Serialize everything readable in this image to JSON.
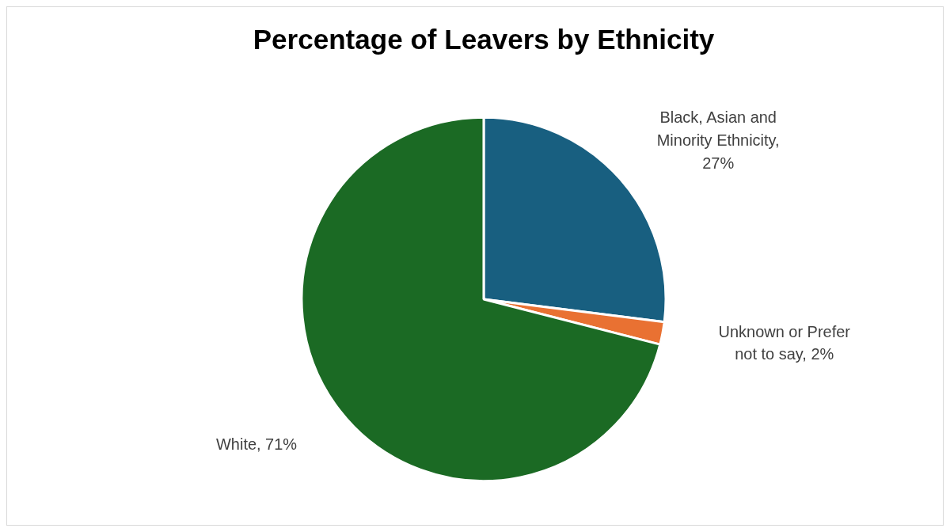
{
  "chart_data": {
    "type": "pie",
    "title": "Percentage of Leavers by Ethnicity",
    "categories": [
      "Black, Asian and Minority Ethnicity",
      "Unknown or Prefer not to say",
      "White"
    ],
    "values": [
      27,
      2,
      71
    ],
    "colors": [
      "#185f80",
      "#e97132",
      "#1b6a24"
    ],
    "value_labels": [
      ", 27%",
      ", 2%",
      ", 71%"
    ],
    "legend": false
  }
}
